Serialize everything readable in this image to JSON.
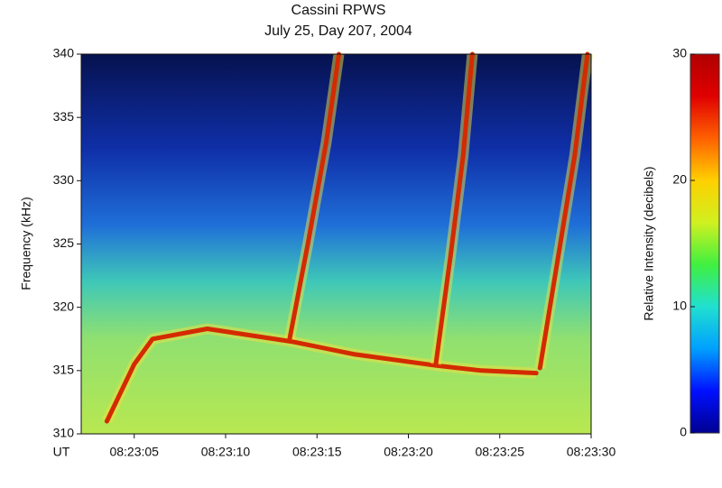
{
  "chart_data": {
    "type": "spectrogram",
    "title": "Cassini RPWS",
    "subtitle": "July 25, Day 207, 2004",
    "y_label": "Frequency (kHz)",
    "x_label": "UT",
    "xlim": [
      "08:23:02.1",
      "08:23:30"
    ],
    "xticks": [
      "08:23:05",
      "08:23:10",
      "08:23:15",
      "08:23:20",
      "08:23:25",
      "08:23:30"
    ],
    "ylim": [
      310,
      340
    ],
    "yticks": [
      310,
      315,
      320,
      325,
      330,
      335,
      340
    ],
    "series": [
      {
        "color": "#d42a00",
        "x": [
          "08:23:03.5",
          "08:23:05",
          "08:23:06",
          "08:23:09",
          "08:23:13.6",
          "08:23:17",
          "08:23:21.5",
          "08:23:24",
          "08:23:27"
        ],
        "values": [
          311,
          315.5,
          317.5,
          318.3,
          317.3,
          316.3,
          315.4,
          315,
          314.8
        ]
      },
      {
        "color": "#d42a00",
        "x": [
          "08:23:13.5",
          "08:23:14.5",
          "08:23:15.5",
          "08:23:16.2"
        ],
        "values": [
          317.5,
          325,
          333,
          340
        ]
      },
      {
        "color": "#d42a00",
        "x": [
          "08:23:21.5",
          "08:23:22.3",
          "08:23:23",
          "08:23:23.5"
        ],
        "values": [
          315.5,
          324,
          332,
          340
        ]
      },
      {
        "color": "#d42a00",
        "x": [
          "08:23:27.2",
          "08:23:28.2",
          "08:23:29.1",
          "08:23:29.8"
        ],
        "values": [
          315.2,
          324,
          332,
          340
        ]
      }
    ],
    "colorbar": {
      "label": "Relative Intensity (decibels)",
      "zlim": [
        0,
        30
      ],
      "zticks": [
        0,
        10,
        20,
        30
      ],
      "colormap": [
        "#000090",
        "#0010ff",
        "#00a0ff",
        "#20e0d0",
        "#40f040",
        "#d0f020",
        "#ffd000",
        "#ff6000",
        "#e00000",
        "#b00000"
      ]
    }
  }
}
